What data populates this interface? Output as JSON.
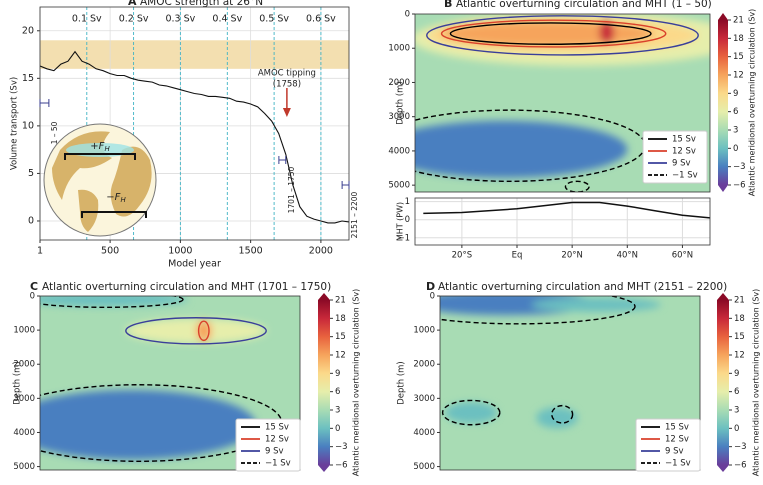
{
  "chart_data": [
    {
      "type": "line",
      "panel": "A",
      "title": "AMOC strength at 26°N",
      "xlabel": "Model year",
      "ylabel": "Volume transport (Sv)",
      "xlim": [
        1,
        2200
      ],
      "ylim": [
        -2,
        22.5
      ],
      "xticks": [
        1,
        500,
        1000,
        1500,
        2000
      ],
      "yticks": [
        0,
        5,
        10,
        15,
        20
      ],
      "grid": true,
      "color": "#111111",
      "x": [
        1,
        50,
        100,
        150,
        200,
        250,
        300,
        350,
        400,
        450,
        500,
        550,
        600,
        650,
        700,
        750,
        800,
        850,
        900,
        950,
        1000,
        1050,
        1100,
        1150,
        1200,
        1250,
        1300,
        1350,
        1400,
        1450,
        1500,
        1550,
        1600,
        1650,
        1700,
        1750,
        1800,
        1850,
        1900,
        1950,
        2000,
        2050,
        2100,
        2150,
        2200
      ],
      "values": [
        16.3,
        16.0,
        15.8,
        16.5,
        16.8,
        17.8,
        16.8,
        16.5,
        16.0,
        15.8,
        15.5,
        15.3,
        15.3,
        15.0,
        14.8,
        14.7,
        14.6,
        14.3,
        14.2,
        14.0,
        13.8,
        13.6,
        13.4,
        13.3,
        13.1,
        13.1,
        13.0,
        12.9,
        12.6,
        12.5,
        12.3,
        12.0,
        11.3,
        10.5,
        9.2,
        7.0,
        3.8,
        1.5,
        0.5,
        0.2,
        0.0,
        -0.2,
        -0.2,
        0.0,
        -0.1
      ],
      "shaded_range": [
        16,
        19
      ],
      "shaded_color": "#f3dfb0",
      "forcing_ticks": [
        {
          "value": 334,
          "label": "0.1 Sv"
        },
        {
          "value": 667,
          "label": "0.2 Sv"
        },
        {
          "value": 1000,
          "label": "0.3 Sv"
        },
        {
          "value": 1334,
          "label": "0.4 Sv"
        },
        {
          "value": 1667,
          "label": "0.5 Sv"
        },
        {
          "value": 2000,
          "label": "0.6 Sv"
        }
      ],
      "forcing_color": "#3fb3c4",
      "tipping_year": 1758,
      "tipping_label": [
        "AMOC tipping",
        "(1758)"
      ],
      "tipping_color": "#c0392b",
      "periods": [
        {
          "label": "1 – 50",
          "start": 1,
          "end": 50
        },
        {
          "label": "1701 – 1750",
          "start": 1701,
          "end": 1750
        },
        {
          "label": "2151 – 2200",
          "start": 2151,
          "end": 2200
        }
      ],
      "inset_labels": [
        {
          "text": "+F",
          "sub": "H"
        },
        {
          "text": "−F",
          "sub": "H"
        }
      ]
    },
    {
      "type": "contour",
      "panel": "B",
      "title": "Atlantic overturning circulation and MHT (1 – 50)",
      "ylabel": "Depth (m)",
      "xlim": [
        -37,
        70
      ],
      "ylim": [
        5200,
        0
      ],
      "yticks": [
        0,
        1000,
        2000,
        3000,
        4000,
        5000
      ],
      "xticks": [
        {
          "value": -20,
          "label": "20°S"
        },
        {
          "value": 0,
          "label": "Eq"
        },
        {
          "value": 20,
          "label": "20°N"
        },
        {
          "value": 40,
          "label": "40°N"
        },
        {
          "value": 60,
          "label": "60°N"
        }
      ],
      "colorbar": {
        "label": "Atlantic meridional overturning circulation (Sv)",
        "lim": [
          -6,
          21
        ],
        "ticks": [
          {
            "value": -6,
            "label": "−6"
          },
          {
            "value": -3,
            "label": "−3"
          },
          0,
          3,
          6,
          9,
          12,
          15,
          18,
          21
        ]
      },
      "legend": [
        {
          "name": "15 Sv",
          "color": "#000000",
          "style": "solid"
        },
        {
          "name": "12 Sv",
          "color": "#d9412b",
          "style": "solid"
        },
        {
          "name": "9 Sv",
          "color": "#3a3f9a",
          "style": "solid"
        },
        {
          "name": "−1 Sv",
          "color": "#000000",
          "style": "dashed"
        }
      ],
      "mht": {
        "ylabel": "MHT (PW)",
        "ylim": [
          -1.4,
          1.2
        ],
        "yticks": [
          {
            "value": -1,
            "label": "−1"
          },
          0,
          1
        ],
        "x": [
          -34,
          -20,
          0,
          20,
          30,
          40,
          50,
          60,
          70
        ],
        "values": [
          0.35,
          0.4,
          0.6,
          0.95,
          0.95,
          0.75,
          0.5,
          0.25,
          0.1
        ]
      }
    },
    {
      "type": "contour",
      "panel": "C",
      "title": "Atlantic overturning circulation and MHT (1701 – 1750)",
      "ylabel": "Depth (m)",
      "ylim": [
        5100,
        0
      ],
      "yticks": [
        0,
        1000,
        2000,
        3000,
        4000,
        5000
      ],
      "colorbar": {
        "label": "Atlantic meridional overturning circulation (Sv)",
        "lim": [
          -6,
          21
        ],
        "ticks": [
          {
            "value": -6,
            "label": "−6"
          },
          {
            "value": -3,
            "label": "−3"
          },
          0,
          3,
          6,
          9,
          12,
          15,
          18,
          21
        ]
      },
      "legend": [
        {
          "name": "15 Sv",
          "color": "#000000",
          "style": "solid"
        },
        {
          "name": "12 Sv",
          "color": "#d9412b",
          "style": "solid"
        },
        {
          "name": "9 Sv",
          "color": "#3a3f9a",
          "style": "solid"
        },
        {
          "name": "−1 Sv",
          "color": "#000000",
          "style": "dashed"
        }
      ]
    },
    {
      "type": "contour",
      "panel": "D",
      "title": "Atlantic overturning circulation and MHT (2151 – 2200)",
      "ylabel": "Depth (m)",
      "ylim": [
        5100,
        0
      ],
      "yticks": [
        0,
        1000,
        2000,
        3000,
        4000,
        5000
      ],
      "colorbar": {
        "label": "Atlantic meridional overturning circulation (Sv)",
        "lim": [
          -6,
          21
        ],
        "ticks": [
          {
            "value": -6,
            "label": "−6"
          },
          {
            "value": -3,
            "label": "−3"
          },
          0,
          3,
          6,
          9,
          12,
          15,
          18,
          21
        ]
      },
      "legend": [
        {
          "name": "15 Sv",
          "color": "#000000",
          "style": "solid"
        },
        {
          "name": "12 Sv",
          "color": "#d9412b",
          "style": "solid"
        },
        {
          "name": "9 Sv",
          "color": "#3a3f9a",
          "style": "solid"
        },
        {
          "name": "−1 Sv",
          "color": "#000000",
          "style": "dashed"
        }
      ]
    }
  ]
}
